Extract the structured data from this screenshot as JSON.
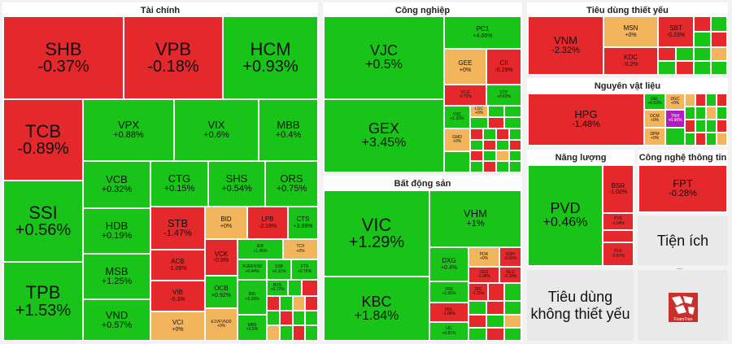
{
  "sectors": {
    "finance": "Tài chính",
    "industry": "Công nghiệp",
    "realestate": "Bất động sản",
    "consumer_staples": "Tiêu dùng thiết yếu",
    "materials": "Nguyên vật liệu",
    "energy": "Năng lượng",
    "tech": "Công nghệ thông tin",
    "utilities": "Tiện ích",
    "consumer_discretionary": "Tiêu dùng không thiết yếu"
  },
  "tiles": [
    {
      "sym": "SHB",
      "chg": "-0.37%",
      "c": "r"
    },
    {
      "sym": "VPB",
      "chg": "-0.18%",
      "c": "r"
    },
    {
      "sym": "HCM",
      "chg": "+0.93%",
      "c": "g"
    },
    {
      "sym": "TCB",
      "chg": "-0.89%",
      "c": "r"
    },
    {
      "sym": "SSI",
      "chg": "+0.56%",
      "c": "g"
    },
    {
      "sym": "TPB",
      "chg": "+1.53%",
      "c": "g"
    },
    {
      "sym": "VPX",
      "chg": "+0.88%",
      "c": "g"
    },
    {
      "sym": "VIX",
      "chg": "+0.6%",
      "c": "g"
    },
    {
      "sym": "MBB",
      "chg": "+0.4%",
      "c": "g"
    },
    {
      "sym": "VCB",
      "chg": "+0.32%",
      "c": "g"
    },
    {
      "sym": "HDB",
      "chg": "+0.19%",
      "c": "g"
    },
    {
      "sym": "MSB",
      "chg": "+1.25%",
      "c": "g"
    },
    {
      "sym": "VND",
      "chg": "+0.57%",
      "c": "g"
    },
    {
      "sym": "CTG",
      "chg": "+0.15%",
      "c": "g"
    },
    {
      "sym": "SHS",
      "chg": "+0.54%",
      "c": "g"
    },
    {
      "sym": "ORS",
      "chg": "+0.75%",
      "c": "g"
    },
    {
      "sym": "STB",
      "chg": "-1.47%",
      "c": "r"
    },
    {
      "sym": "BID",
      "chg": "+0%",
      "c": "y"
    },
    {
      "sym": "LPB",
      "chg": "-2.19%",
      "c": "r"
    },
    {
      "sym": "CTS",
      "chg": "+3.98%",
      "c": "g"
    },
    {
      "sym": "ACB",
      "chg": "-1.09%",
      "c": "r"
    },
    {
      "sym": "VCK",
      "chg": "-0.9%",
      "c": "r"
    },
    {
      "sym": "EIB",
      "chg": "+1.45%",
      "c": "g"
    },
    {
      "sym": "TCX",
      "chg": "+0%",
      "c": "y"
    },
    {
      "sym": "VIB",
      "chg": "-0.3%",
      "c": "r"
    },
    {
      "sym": "OCB",
      "chg": "+0.92%",
      "c": "g"
    },
    {
      "sym": "FUEKIV30",
      "chg": "+0.44%",
      "c": "g"
    },
    {
      "sym": "SSB",
      "chg": "+0.31%",
      "c": "g"
    },
    {
      "sym": "FTS",
      "chg": "+0.76%",
      "c": "g"
    },
    {
      "sym": "VCI",
      "chg": "+0%",
      "c": "y"
    },
    {
      "sym": "E1VFVN30",
      "chg": "+0%",
      "c": "y"
    },
    {
      "sym": "BSI",
      "chg": "+2.29%",
      "c": "g"
    },
    {
      "sym": "BVS",
      "chg": "+0.72%",
      "c": "g"
    },
    {
      "sym": "MBS",
      "chg": "+0.5%",
      "c": "g"
    },
    {
      "sym": "VJC",
      "chg": "+0.5%",
      "c": "g"
    },
    {
      "sym": "GEX",
      "chg": "+3.45%",
      "c": "g"
    },
    {
      "sym": "PC1",
      "chg": "+4.05%",
      "c": "g"
    },
    {
      "sym": "GEE",
      "chg": "+0%",
      "c": "y"
    },
    {
      "sym": "CII",
      "chg": "-0.29%",
      "c": "r"
    },
    {
      "sym": "VCG",
      "chg": "-0.72%",
      "c": "r"
    },
    {
      "sym": "VTP",
      "chg": "+0.63%",
      "c": "g"
    },
    {
      "sym": "VSC",
      "chg": "+1.33%",
      "c": "g"
    },
    {
      "sym": "LGC",
      "chg": "+0%",
      "c": "y"
    },
    {
      "sym": "GMD",
      "chg": "+0%",
      "c": "y"
    },
    {
      "sym": "VIC",
      "chg": "+1.29%",
      "c": "g"
    },
    {
      "sym": "KBC",
      "chg": "+1.84%",
      "c": "g"
    },
    {
      "sym": "VHM",
      "chg": "+1%",
      "c": "g"
    },
    {
      "sym": "DXG",
      "chg": "+0.4%",
      "c": "g"
    },
    {
      "sym": "PDR",
      "chg": "+0%",
      "c": "y"
    },
    {
      "sym": "KDH",
      "chg": "-0.65%",
      "c": "r"
    },
    {
      "sym": "VRE",
      "chg": "+1.06%",
      "c": "g"
    },
    {
      "sym": "CEO",
      "chg": "-1.38%",
      "c": "r"
    },
    {
      "sym": "NLG",
      "chg": "-0.38%",
      "c": "r"
    },
    {
      "sym": "NVL",
      "chg": "-1.08%",
      "c": "r"
    },
    {
      "sym": "DIG",
      "chg": "-1.11%",
      "c": "r"
    },
    {
      "sym": "IJC",
      "chg": "+0.81%",
      "c": "g"
    },
    {
      "sym": "VNM",
      "chg": "-2.32%",
      "c": "r"
    },
    {
      "sym": "MSN",
      "chg": "+0%",
      "c": "y"
    },
    {
      "sym": "SBT",
      "chg": "-0.23%",
      "c": "r"
    },
    {
      "sym": "KDC",
      "chg": "-0.2%",
      "c": "r"
    },
    {
      "sym": "HPG",
      "chg": "-1.48%",
      "c": "r"
    },
    {
      "sym": "GEL",
      "chg": "+0.63%",
      "c": "g"
    },
    {
      "sym": "DCM",
      "chg": "+0%",
      "c": "y"
    },
    {
      "sym": "DPM",
      "chg": "+0%",
      "c": "y"
    },
    {
      "sym": "DGC",
      "chg": "+0%",
      "c": "y"
    },
    {
      "sym": "TNH",
      "chg": "+0.96%",
      "c": "p"
    },
    {
      "sym": "PVD",
      "chg": "+0.46%",
      "c": "g"
    },
    {
      "sym": "BSR",
      "chg": "-1.02%",
      "c": "r"
    },
    {
      "sym": "PVS",
      "chg": "-1.04%",
      "c": "r"
    },
    {
      "sym": "PLX",
      "chg": "-0.87%",
      "c": "r"
    },
    {
      "sym": "FPT",
      "chg": "-0.28%",
      "c": "r"
    }
  ],
  "utilities_label": "Tiện ích",
  "consumer_discretionary_label": "Tiêu dùng không thiết yếu",
  "more_label": "...",
  "logo_text": "FoamTree",
  "colors": {
    "up": "#19c419",
    "down": "#e5282c",
    "flat": "#f2b55c",
    "ceiling": "#b21bbf"
  }
}
